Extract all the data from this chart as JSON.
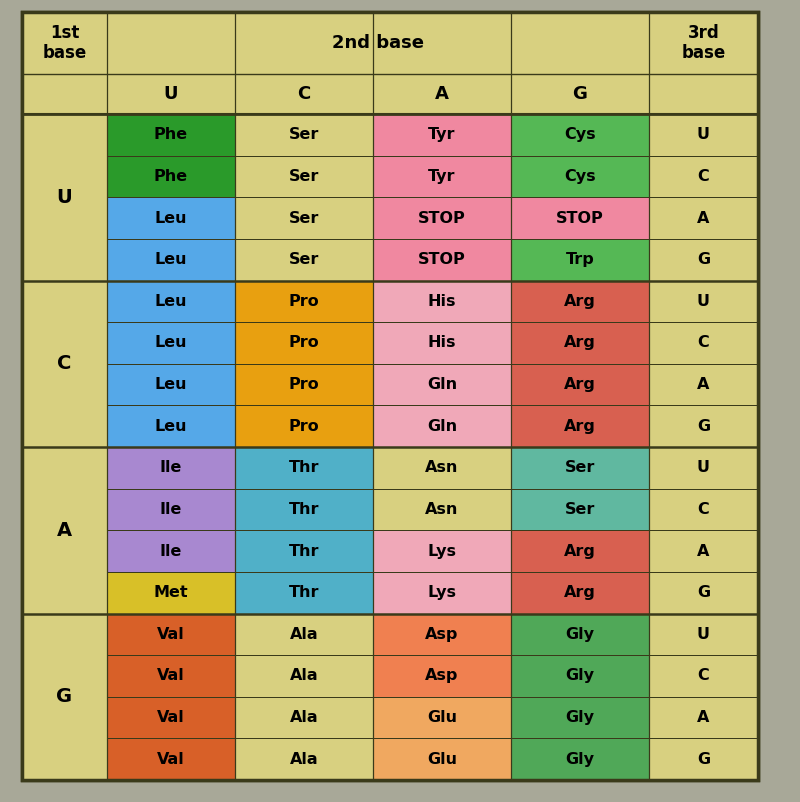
{
  "fig_bg": "#a8a898",
  "outer_bg": "#d8d080",
  "border_color": "#3a3a1a",
  "cell_data": [
    [
      "Phe",
      "Ser",
      "Tyr",
      "Cys",
      "U"
    ],
    [
      "Phe",
      "Ser",
      "Tyr",
      "Cys",
      "C"
    ],
    [
      "Leu",
      "Ser",
      "STOP",
      "STOP",
      "A"
    ],
    [
      "Leu",
      "Ser",
      "STOP",
      "Trp",
      "G"
    ],
    [
      "Leu",
      "Pro",
      "His",
      "Arg",
      "U"
    ],
    [
      "Leu",
      "Pro",
      "His",
      "Arg",
      "C"
    ],
    [
      "Leu",
      "Pro",
      "Gln",
      "Arg",
      "A"
    ],
    [
      "Leu",
      "Pro",
      "Gln",
      "Arg",
      "G"
    ],
    [
      "Ile",
      "Thr",
      "Asn",
      "Ser",
      "U"
    ],
    [
      "Ile",
      "Thr",
      "Asn",
      "Ser",
      "C"
    ],
    [
      "Ile",
      "Thr",
      "Lys",
      "Arg",
      "A"
    ],
    [
      "Met",
      "Thr",
      "Lys",
      "Arg",
      "G"
    ],
    [
      "Val",
      "Ala",
      "Asp",
      "Gly",
      "U"
    ],
    [
      "Val",
      "Ala",
      "Asp",
      "Gly",
      "C"
    ],
    [
      "Val",
      "Ala",
      "Glu",
      "Gly",
      "A"
    ],
    [
      "Val",
      "Ala",
      "Glu",
      "Gly",
      "G"
    ]
  ],
  "actual_colors": [
    [
      "#2a9a2a",
      "#d8d080",
      "#f088a0",
      "#55b855",
      "#d8d080"
    ],
    [
      "#2a9a2a",
      "#d8d080",
      "#f088a0",
      "#55b855",
      "#d8d080"
    ],
    [
      "#55a8e8",
      "#d8d080",
      "#f088a0",
      "#f088a0",
      "#d8d080"
    ],
    [
      "#55a8e8",
      "#d8d080",
      "#f088a0",
      "#55b855",
      "#d8d080"
    ],
    [
      "#55a8e8",
      "#e8a010",
      "#f0a8b8",
      "#d86050",
      "#d8d080"
    ],
    [
      "#55a8e8",
      "#e8a010",
      "#f0a8b8",
      "#d86050",
      "#d8d080"
    ],
    [
      "#55a8e8",
      "#e8a010",
      "#f0a8b8",
      "#d86050",
      "#d8d080"
    ],
    [
      "#55a8e8",
      "#e8a010",
      "#f0a8b8",
      "#d86050",
      "#d8d080"
    ],
    [
      "#a888d0",
      "#50b0c8",
      "#d8d080",
      "#60b8a0",
      "#d8d080"
    ],
    [
      "#a888d0",
      "#50b0c8",
      "#d8d080",
      "#60b8a0",
      "#d8d080"
    ],
    [
      "#a888d0",
      "#50b0c8",
      "#f0a8b8",
      "#d86050",
      "#d8d080"
    ],
    [
      "#d8c028",
      "#50b0c8",
      "#f0a8b8",
      "#d86050",
      "#d8d080"
    ],
    [
      "#d86028",
      "#d8d080",
      "#f08050",
      "#50a858",
      "#d8d080"
    ],
    [
      "#d86028",
      "#d8d080",
      "#f08050",
      "#50a858",
      "#d8d080"
    ],
    [
      "#d86028",
      "#d8d080",
      "#f0a860",
      "#50a858",
      "#d8d080"
    ],
    [
      "#d86028",
      "#d8d080",
      "#f0a860",
      "#50a858",
      "#d8d080"
    ]
  ],
  "first_base_labels": [
    "U",
    "C",
    "A",
    "G"
  ],
  "second_base_labels": [
    "U",
    "C",
    "A",
    "G"
  ]
}
